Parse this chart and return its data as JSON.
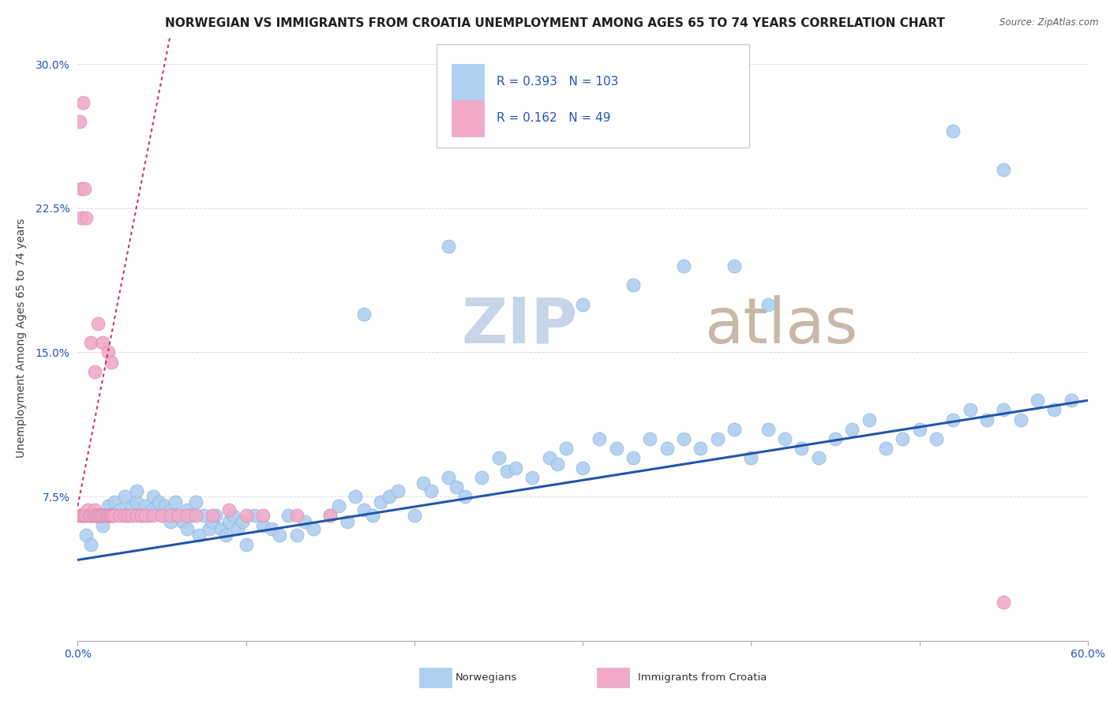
{
  "title": "NORWEGIAN VS IMMIGRANTS FROM CROATIA UNEMPLOYMENT AMONG AGES 65 TO 74 YEARS CORRELATION CHART",
  "source": "Source: ZipAtlas.com",
  "ylabel": "Unemployment Among Ages 65 to 74 years",
  "xlim": [
    0.0,
    0.6
  ],
  "ylim": [
    0.0,
    0.315
  ],
  "xticks": [
    0.0,
    0.1,
    0.2,
    0.3,
    0.4,
    0.5,
    0.6
  ],
  "xticklabels": [
    "0.0%",
    "",
    "",
    "",
    "",
    "",
    "60.0%"
  ],
  "yticks": [
    0.0,
    0.075,
    0.15,
    0.225,
    0.3
  ],
  "yticklabels": [
    "",
    "7.5%",
    "15.0%",
    "22.5%",
    "30.0%"
  ],
  "norwegian_R": 0.393,
  "norwegian_N": 103,
  "croatian_R": 0.162,
  "croatian_N": 49,
  "norwegian_color": "#aecff0",
  "croatian_color": "#f0aac8",
  "trend_norwegian_color": "#2255aa",
  "trend_croatian_color": "#cc3366",
  "watermark_zip": "ZIP",
  "watermark_atlas": "atlas",
  "watermark_color": "#c8d4e8",
  "watermark_atlas_color": "#c8b8a8",
  "background_color": "#ffffff",
  "grid_color": "#dddddd",
  "title_fontsize": 11,
  "axis_label_fontsize": 10,
  "tick_fontsize": 10,
  "legend_fontsize": 11,
  "nor_x": [
    0.005,
    0.008,
    0.012,
    0.015,
    0.018,
    0.02,
    0.022,
    0.025,
    0.028,
    0.03,
    0.032,
    0.035,
    0.035,
    0.038,
    0.04,
    0.042,
    0.044,
    0.045,
    0.048,
    0.05,
    0.052,
    0.055,
    0.055,
    0.058,
    0.06,
    0.062,
    0.065,
    0.065,
    0.068,
    0.07,
    0.072,
    0.075,
    0.078,
    0.08,
    0.082,
    0.085,
    0.088,
    0.09,
    0.092,
    0.095,
    0.098,
    0.1,
    0.105,
    0.11,
    0.115,
    0.12,
    0.125,
    0.13,
    0.135,
    0.14,
    0.15,
    0.155,
    0.16,
    0.165,
    0.17,
    0.175,
    0.18,
    0.185,
    0.19,
    0.2,
    0.205,
    0.21,
    0.22,
    0.225,
    0.23,
    0.24,
    0.25,
    0.255,
    0.26,
    0.27,
    0.28,
    0.285,
    0.29,
    0.3,
    0.31,
    0.32,
    0.33,
    0.34,
    0.35,
    0.36,
    0.37,
    0.38,
    0.39,
    0.4,
    0.41,
    0.42,
    0.43,
    0.44,
    0.45,
    0.46,
    0.47,
    0.48,
    0.49,
    0.5,
    0.51,
    0.52,
    0.53,
    0.54,
    0.55,
    0.56,
    0.57,
    0.58,
    0.59
  ],
  "nor_y": [
    0.055,
    0.05,
    0.065,
    0.06,
    0.07,
    0.065,
    0.072,
    0.068,
    0.075,
    0.065,
    0.07,
    0.072,
    0.078,
    0.065,
    0.07,
    0.065,
    0.068,
    0.075,
    0.072,
    0.065,
    0.07,
    0.062,
    0.068,
    0.072,
    0.065,
    0.062,
    0.058,
    0.068,
    0.065,
    0.072,
    0.055,
    0.065,
    0.058,
    0.062,
    0.065,
    0.058,
    0.055,
    0.062,
    0.065,
    0.058,
    0.062,
    0.05,
    0.065,
    0.06,
    0.058,
    0.055,
    0.065,
    0.055,
    0.062,
    0.058,
    0.065,
    0.07,
    0.062,
    0.075,
    0.068,
    0.065,
    0.072,
    0.075,
    0.078,
    0.065,
    0.082,
    0.078,
    0.085,
    0.08,
    0.075,
    0.085,
    0.095,
    0.088,
    0.09,
    0.085,
    0.095,
    0.092,
    0.1,
    0.09,
    0.105,
    0.1,
    0.095,
    0.105,
    0.1,
    0.105,
    0.1,
    0.105,
    0.11,
    0.095,
    0.11,
    0.105,
    0.1,
    0.095,
    0.105,
    0.11,
    0.115,
    0.1,
    0.105,
    0.11,
    0.105,
    0.115,
    0.12,
    0.115,
    0.12,
    0.115,
    0.125,
    0.12,
    0.125
  ],
  "nor_outliers_x": [
    0.52,
    0.55,
    0.17,
    0.22,
    0.39,
    0.41,
    0.3,
    0.33,
    0.36
  ],
  "nor_outliers_y": [
    0.265,
    0.245,
    0.17,
    0.205,
    0.195,
    0.175,
    0.175,
    0.185,
    0.195
  ],
  "cro_x": [
    0.001,
    0.002,
    0.003,
    0.003,
    0.004,
    0.005,
    0.006,
    0.007,
    0.008,
    0.008,
    0.009,
    0.01,
    0.01,
    0.011,
    0.012,
    0.012,
    0.013,
    0.014,
    0.015,
    0.016,
    0.017,
    0.018,
    0.019,
    0.02,
    0.02,
    0.021,
    0.022,
    0.025,
    0.028,
    0.03,
    0.032,
    0.035,
    0.038,
    0.04,
    0.045,
    0.05,
    0.055,
    0.06,
    0.065,
    0.07,
    0.08,
    0.09,
    0.1,
    0.11,
    0.13,
    0.15,
    0.55,
    0.002,
    0.003
  ],
  "cro_y": [
    0.065,
    0.065,
    0.065,
    0.065,
    0.065,
    0.065,
    0.068,
    0.065,
    0.065,
    0.065,
    0.065,
    0.068,
    0.065,
    0.065,
    0.065,
    0.065,
    0.065,
    0.065,
    0.065,
    0.065,
    0.065,
    0.065,
    0.065,
    0.065,
    0.065,
    0.065,
    0.065,
    0.065,
    0.065,
    0.065,
    0.065,
    0.065,
    0.065,
    0.065,
    0.065,
    0.065,
    0.065,
    0.065,
    0.065,
    0.065,
    0.065,
    0.068,
    0.065,
    0.065,
    0.065,
    0.065,
    0.02,
    0.22,
    0.28
  ],
  "cro_high_x": [
    0.001,
    0.002,
    0.004,
    0.005,
    0.008,
    0.01,
    0.012,
    0.015,
    0.018,
    0.02
  ],
  "cro_high_y": [
    0.27,
    0.235,
    0.235,
    0.22,
    0.155,
    0.14,
    0.165,
    0.155,
    0.15,
    0.145
  ],
  "nor_trend_x0": 0.0,
  "nor_trend_y0": 0.042,
  "nor_trend_x1": 0.6,
  "nor_trend_y1": 0.125,
  "cro_trend_x0": 0.0,
  "cro_trend_y0": 0.07,
  "cro_trend_x1": 0.055,
  "cro_trend_y1": 0.315
}
